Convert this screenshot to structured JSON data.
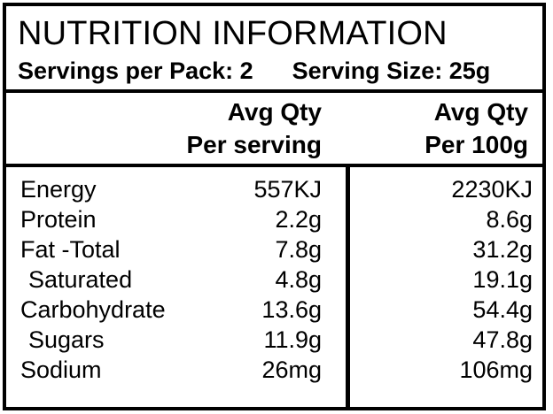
{
  "label": {
    "title": "NUTRITION INFORMATION",
    "servings_per_pack": "Servings per Pack: 2",
    "serving_size": "Serving Size: 25g",
    "columns": [
      {
        "line1": "Avg Qty",
        "line2": "Per serving"
      },
      {
        "line1": "Avg Qty",
        "line2": "Per 100g"
      }
    ],
    "rows": [
      {
        "nutrient": "Energy",
        "per_serving": "557KJ",
        "per_100g": "2230KJ",
        "indent": false
      },
      {
        "nutrient": "Protein",
        "per_serving": "2.2g",
        "per_100g": "8.6g",
        "indent": false
      },
      {
        "nutrient": "Fat -Total",
        "per_serving": "7.8g",
        "per_100g": "31.2g",
        "indent": false
      },
      {
        "nutrient": "Saturated",
        "per_serving": "4.8g",
        "per_100g": "19.1g",
        "indent": true
      },
      {
        "nutrient": "Carbohydrate",
        "per_serving": "13.6g",
        "per_100g": "54.4g",
        "indent": false
      },
      {
        "nutrient": "Sugars",
        "per_serving": "11.9g",
        "per_100g": "47.8g",
        "indent": true
      },
      {
        "nutrient": "Sodium",
        "per_serving": "26mg",
        "per_100g": "106mg",
        "indent": false
      }
    ],
    "colors": {
      "text": "#000000",
      "border": "#000000",
      "background": "#ffffff"
    }
  }
}
